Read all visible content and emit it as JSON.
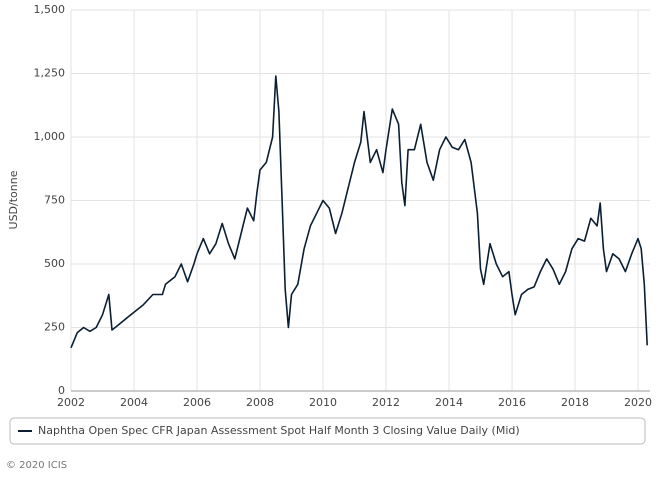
{
  "chart_data": {
    "type": "line",
    "y_label": "USD/tonne",
    "footer": "© 2020 ICIS",
    "x": [
      2002.0,
      2002.2,
      2002.4,
      2002.6,
      2002.8,
      2003.0,
      2003.2,
      2003.3,
      2003.5,
      2003.8,
      2004.0,
      2004.3,
      2004.6,
      2004.9,
      2005.0,
      2005.3,
      2005.5,
      2005.7,
      2005.9,
      2006.0,
      2006.2,
      2006.4,
      2006.6,
      2006.8,
      2007.0,
      2007.2,
      2007.4,
      2007.6,
      2007.8,
      2007.9,
      2008.0,
      2008.2,
      2008.4,
      2008.5,
      2008.6,
      2008.7,
      2008.8,
      2008.9,
      2009.0,
      2009.2,
      2009.4,
      2009.6,
      2009.8,
      2010.0,
      2010.2,
      2010.4,
      2010.6,
      2010.8,
      2011.0,
      2011.2,
      2011.3,
      2011.5,
      2011.7,
      2011.9,
      2012.0,
      2012.2,
      2012.4,
      2012.5,
      2012.6,
      2012.7,
      2012.9,
      2013.1,
      2013.3,
      2013.5,
      2013.7,
      2013.9,
      2014.1,
      2014.3,
      2014.5,
      2014.7,
      2014.9,
      2015.0,
      2015.1,
      2015.3,
      2015.5,
      2015.7,
      2015.9,
      2016.0,
      2016.1,
      2016.3,
      2016.5,
      2016.7,
      2016.9,
      2017.1,
      2017.3,
      2017.5,
      2017.7,
      2017.9,
      2018.1,
      2018.3,
      2018.5,
      2018.7,
      2018.8,
      2018.9,
      2019.0,
      2019.2,
      2019.4,
      2019.6,
      2019.8,
      2020.0,
      2020.1,
      2020.2,
      2020.29
    ],
    "series": [
      {
        "name": "Naphtha Open Spec CFR Japan Assessment Spot Half Month 3 Closing Value Daily (Mid)",
        "color": "#0b1f33",
        "values": [
          170,
          230,
          250,
          235,
          250,
          300,
          380,
          240,
          260,
          290,
          310,
          340,
          380,
          380,
          420,
          450,
          500,
          430,
          500,
          540,
          600,
          540,
          580,
          660,
          580,
          520,
          620,
          720,
          670,
          780,
          870,
          900,
          1000,
          1240,
          1100,
          750,
          400,
          250,
          380,
          420,
          560,
          650,
          700,
          750,
          720,
          620,
          700,
          800,
          900,
          980,
          1100,
          900,
          950,
          860,
          950,
          1110,
          1050,
          820,
          730,
          950,
          950,
          1050,
          900,
          830,
          950,
          1000,
          960,
          950,
          990,
          900,
          700,
          480,
          420,
          580,
          500,
          450,
          470,
          380,
          300,
          380,
          400,
          410,
          470,
          520,
          480,
          420,
          470,
          560,
          600,
          590,
          680,
          650,
          740,
          560,
          470,
          540,
          520,
          470,
          540,
          600,
          560,
          420,
          180
        ]
      }
    ],
    "xlim": [
      2002,
      2020.38
    ],
    "xticks": [
      2002,
      2004,
      2006,
      2008,
      2010,
      2012,
      2014,
      2016,
      2018,
      2020
    ],
    "ylim": [
      0,
      1500
    ],
    "yticks": [
      0,
      250,
      500,
      750,
      {
        "value": 1000,
        "label": "1,000"
      },
      {
        "value": 1250,
        "label": "1,250"
      },
      {
        "value": 1500,
        "label": "1,500"
      }
    ],
    "grid": true
  }
}
